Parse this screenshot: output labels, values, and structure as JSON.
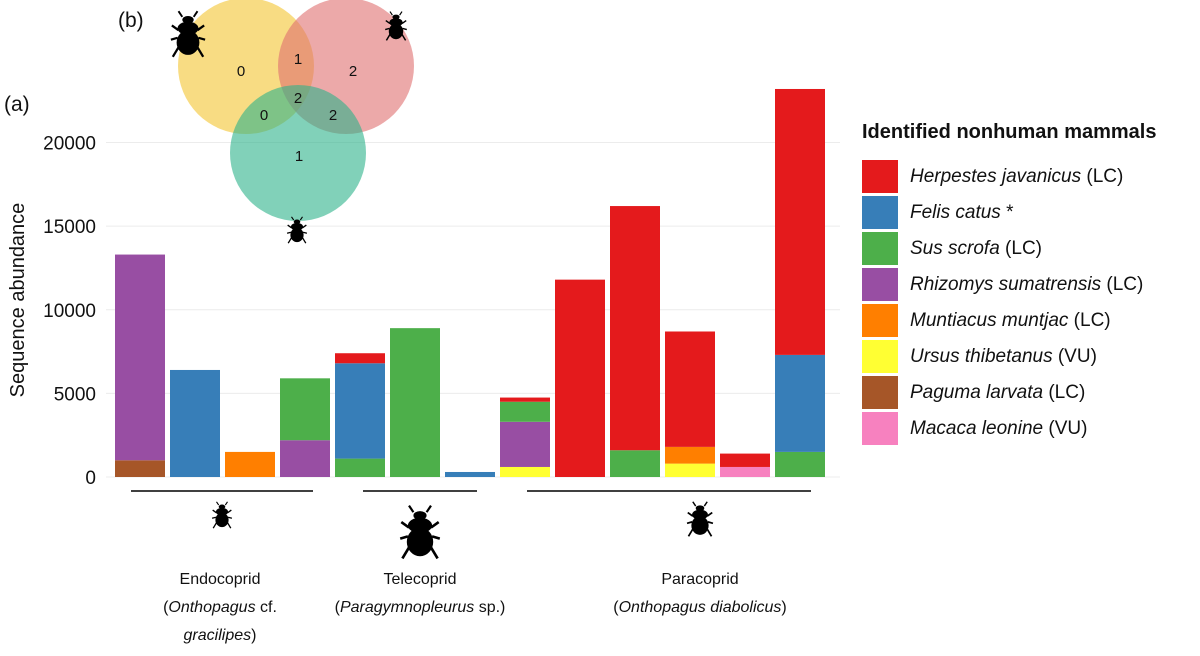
{
  "panel_a_label": "(a)",
  "panel_b_label": "(b)",
  "chart_data": [
    {
      "type": "bar",
      "stacked": true,
      "ylabel": "Sequence abundance",
      "ylim": [
        0,
        23500
      ],
      "yticks": [
        0,
        5000,
        10000,
        15000,
        20000
      ],
      "grid": true,
      "bars": [
        {
          "group": 0,
          "segments": [
            {
              "series": "Paguma larvata",
              "value": 1000
            },
            {
              "series": "Rhizomys sumatrensis",
              "value": 12300
            }
          ]
        },
        {
          "group": 0,
          "segments": [
            {
              "series": "Felis catus",
              "value": 6400
            }
          ]
        },
        {
          "group": 0,
          "segments": [
            {
              "series": "Muntiacus muntjac",
              "value": 1500
            }
          ]
        },
        {
          "group": 0,
          "segments": [
            {
              "series": "Rhizomys sumatrensis",
              "value": 2200
            },
            {
              "series": "Sus scrofa",
              "value": 3700
            }
          ]
        },
        {
          "group": 1,
          "segments": [
            {
              "series": "Sus scrofa",
              "value": 1100
            },
            {
              "series": "Felis catus",
              "value": 5700
            },
            {
              "series": "Herpestes javanicus",
              "value": 600
            }
          ]
        },
        {
          "group": 1,
          "segments": [
            {
              "series": "Sus scrofa",
              "value": 8900
            }
          ]
        },
        {
          "group": 1,
          "segments": [
            {
              "series": "Felis catus",
              "value": 300
            }
          ]
        },
        {
          "group": 2,
          "segments": [
            {
              "series": "Ursus thibetanus",
              "value": 600
            },
            {
              "series": "Rhizomys sumatrensis",
              "value": 2700
            },
            {
              "series": "Sus scrofa",
              "value": 1200
            },
            {
              "series": "Herpestes javanicus",
              "value": 250
            }
          ]
        },
        {
          "group": 2,
          "segments": [
            {
              "series": "Herpestes javanicus",
              "value": 11800
            }
          ]
        },
        {
          "group": 2,
          "segments": [
            {
              "series": "Sus scrofa",
              "value": 1600
            },
            {
              "series": "Herpestes javanicus",
              "value": 14600
            }
          ]
        },
        {
          "group": 2,
          "segments": [
            {
              "series": "Ursus thibetanus",
              "value": 800
            },
            {
              "series": "Muntiacus muntjac",
              "value": 1000
            },
            {
              "series": "Herpestes javanicus",
              "value": 6900
            }
          ]
        },
        {
          "group": 2,
          "segments": [
            {
              "series": "Macaca leonine",
              "value": 600
            },
            {
              "series": "Herpestes javanicus",
              "value": 800
            }
          ]
        },
        {
          "group": 2,
          "segments": [
            {
              "series": "Sus scrofa",
              "value": 1500
            },
            {
              "series": "Felis catus",
              "value": 5800
            },
            {
              "series": "Herpestes javanicus",
              "value": 15900
            }
          ]
        }
      ],
      "groups": [
        {
          "line1": "Endocoprid",
          "line2_open": "(",
          "line2_italic": "Onthopagus",
          "line2_rest": " cf.",
          "line3_italic": "gracilipes",
          "line3_close": ")"
        },
        {
          "line1": "Telecoprid",
          "line2_open": "(",
          "line2_italic": "Paragymnopleurus",
          "line2_rest": " sp.)",
          "line3_italic": "",
          "line3_close": ""
        },
        {
          "line1": "Paracoprid",
          "line2_open": "(",
          "line2_italic": "Onthopagus diabolicus",
          "line2_rest": ")",
          "line3_italic": "",
          "line3_close": ""
        }
      ],
      "legend": {
        "title": "Identified nonhuman mammals",
        "items": [
          {
            "name": "Herpestes javanicus",
            "status": " (LC)",
            "color": "#e41a1c"
          },
          {
            "name": "Felis catus",
            "status": " *",
            "color": "#377eb8"
          },
          {
            "name": "Sus scrofa",
            "status": " (LC)",
            "color": "#4daf4a"
          },
          {
            "name": "Rhizomys sumatrensis",
            "status": " (LC)",
            "color": "#984ea3"
          },
          {
            "name": "Muntiacus muntjac",
            "status": " (LC)",
            "color": "#ff7f00"
          },
          {
            "name": "Ursus thibetanus",
            "status": " (VU)",
            "color": "#ffff33"
          },
          {
            "name": "Paguma larvata",
            "status": " (LC)",
            "color": "#a65628"
          },
          {
            "name": "Macaca leonine",
            "status": " (VU)",
            "color": "#f781bf"
          }
        ]
      }
    },
    {
      "type": "venn",
      "sets": [
        {
          "color": "#f4c430",
          "only": 0
        },
        {
          "color": "#e07070",
          "only": 2
        },
        {
          "color": "#2db38a",
          "only": 1
        }
      ],
      "intersections": {
        "ab": 1,
        "ac": 0,
        "bc": 2,
        "abc": 2
      }
    }
  ]
}
